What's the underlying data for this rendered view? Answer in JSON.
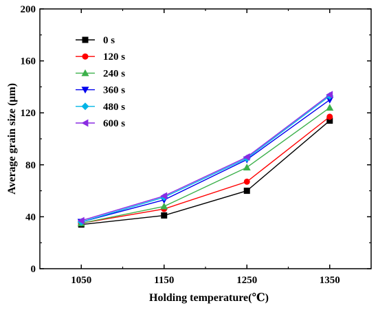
{
  "chart_data": {
    "type": "line",
    "xlabel": "Holding temperature(℃)",
    "ylabel": "Average grain size (μm)",
    "x": [
      1050,
      1150,
      1250,
      1350
    ],
    "x_ticks": [
      "1050",
      "1150",
      "1250",
      "1350"
    ],
    "ylim": [
      0,
      200
    ],
    "y_ticks": [
      "0",
      "40",
      "80",
      "120",
      "160",
      "200"
    ],
    "grid": false,
    "legend_position": "top-left",
    "series": [
      {
        "name": "0 s",
        "color": "#000000",
        "marker": "square",
        "values": [
          34,
          41,
          60,
          114
        ]
      },
      {
        "name": "120 s",
        "color": "#ff0000",
        "marker": "circle",
        "values": [
          35,
          46,
          67,
          117
        ]
      },
      {
        "name": "240 s",
        "color": "#3cb04b",
        "marker": "triangle-up",
        "values": [
          35,
          48,
          78,
          124
        ]
      },
      {
        "name": "360 s",
        "color": "#0000ee",
        "marker": "triangle-down",
        "values": [
          36,
          53,
          84,
          130
        ]
      },
      {
        "name": "480 s",
        "color": "#00b4e6",
        "marker": "diamond",
        "values": [
          36,
          55,
          85,
          133
        ]
      },
      {
        "name": "600 s",
        "color": "#8a2be2",
        "marker": "triangle-left",
        "values": [
          37,
          56,
          86,
          134
        ]
      }
    ]
  }
}
